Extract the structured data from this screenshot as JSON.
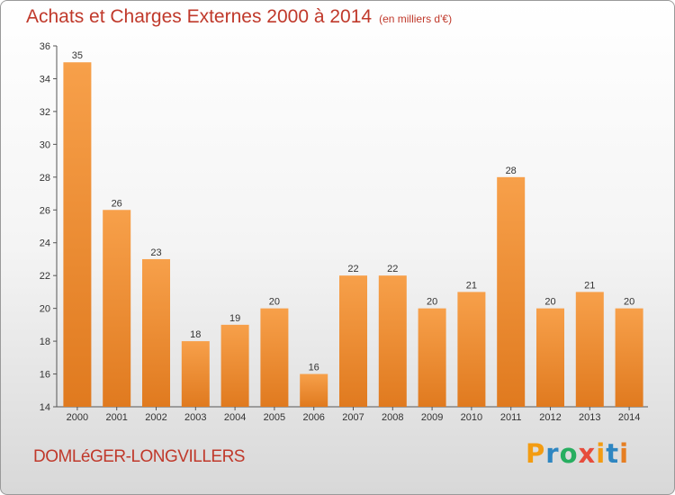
{
  "header": {
    "title": "Achats et Charges Externes 2000 à 2014",
    "unit": "(en milliers d'€)"
  },
  "footer": {
    "town": "DOMLéGER-LONGVILLERS",
    "logo_letters": [
      "P",
      "r",
      "o",
      "x",
      "i",
      "t",
      "i"
    ],
    "logo_colors": [
      "#f39c12",
      "#2e86c1",
      "#27ae60",
      "#e74c3c",
      "#f39c12",
      "#2e86c1",
      "#e67e22"
    ]
  },
  "colors": {
    "bar_top": "#f7a04a",
    "bar_bottom": "#e07a1f",
    "title": "#c0392b"
  },
  "chart_data": {
    "type": "bar",
    "title": "Achats et Charges Externes 2000 à 2014",
    "xlabel": "",
    "ylabel": "",
    "ylim": [
      14,
      36
    ],
    "yticks": [
      14,
      16,
      18,
      20,
      22,
      24,
      26,
      28,
      30,
      32,
      34,
      36
    ],
    "categories": [
      "2000",
      "2001",
      "2002",
      "2003",
      "2004",
      "2005",
      "2006",
      "2007",
      "2008",
      "2009",
      "2010",
      "2011",
      "2012",
      "2013",
      "2014"
    ],
    "values": [
      35,
      26,
      23,
      18,
      19,
      20,
      16,
      22,
      22,
      20,
      21,
      28,
      20,
      21,
      20
    ],
    "grid": false,
    "legend": "none"
  }
}
